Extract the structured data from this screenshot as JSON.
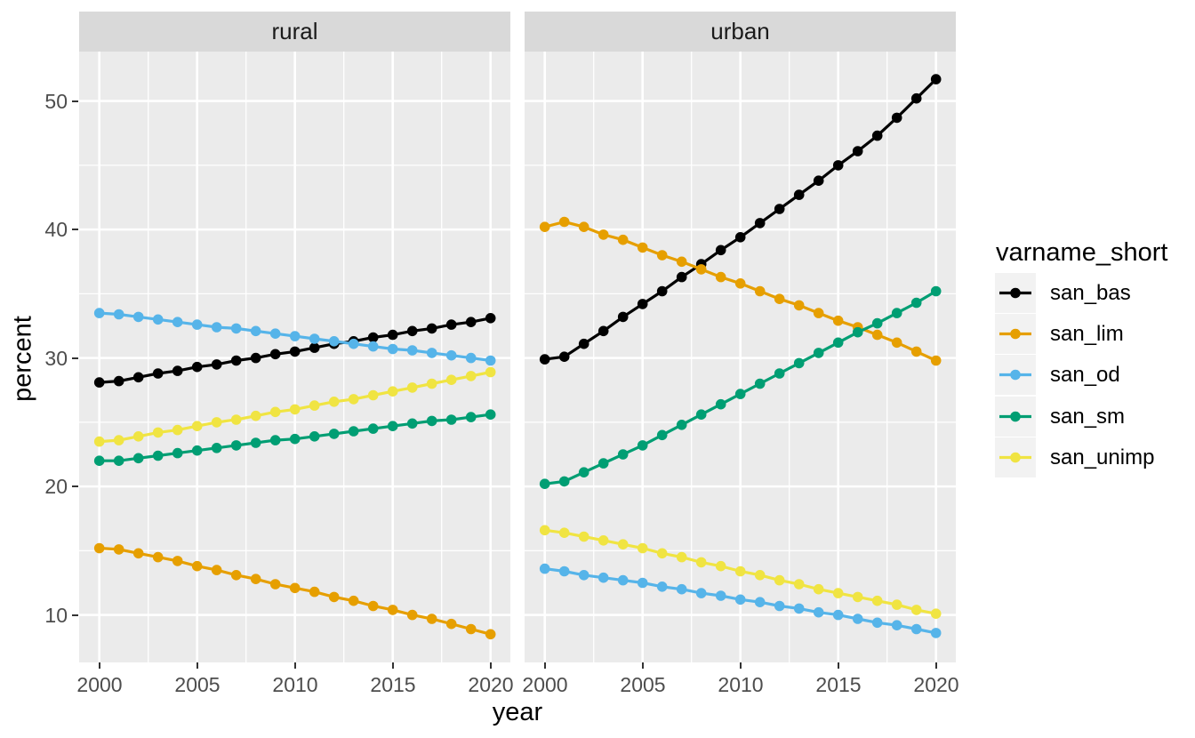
{
  "figure": {
    "background": "#FFFFFF",
    "panel_background": "#EBEBEB",
    "strip_background": "#D9D9D9",
    "grid_color": "#FFFFFF",
    "axis_text_color": "#4D4D4D",
    "tick_mark_color": "#333333",
    "legend_key_background": "#F2F2F2"
  },
  "chart_data": {
    "type": "line",
    "xlabel": "year",
    "ylabel": "percent",
    "legend_title": "varname_short",
    "legend_position": "right",
    "grid": true,
    "facets": [
      "rural",
      "urban"
    ],
    "x": [
      2000,
      2001,
      2002,
      2003,
      2004,
      2005,
      2006,
      2007,
      2008,
      2009,
      2010,
      2011,
      2012,
      2013,
      2014,
      2015,
      2016,
      2017,
      2018,
      2019,
      2020
    ],
    "x_ticks": [
      2000,
      2005,
      2010,
      2015,
      2020
    ],
    "x_minor_ticks": [
      2002.5,
      2007.5,
      2012.5,
      2017.5
    ],
    "y_ticks": [
      10,
      20,
      30,
      40,
      50
    ],
    "y_minor_ticks": [
      15,
      25,
      35,
      45
    ],
    "xlim": [
      1999,
      2021
    ],
    "ylim": [
      6.4,
      53.9
    ],
    "series": [
      {
        "name": "san_bas",
        "color": "#000000",
        "values": {
          "rural": [
            28.1,
            28.2,
            28.5,
            28.8,
            29.0,
            29.3,
            29.5,
            29.8,
            30.0,
            30.3,
            30.5,
            30.8,
            31.1,
            31.3,
            31.6,
            31.8,
            32.1,
            32.3,
            32.6,
            32.8,
            33.1
          ],
          "urban": [
            29.9,
            30.1,
            31.1,
            32.1,
            33.2,
            34.2,
            35.2,
            36.3,
            37.3,
            38.4,
            39.4,
            40.5,
            41.6,
            42.7,
            43.8,
            45.0,
            46.1,
            47.3,
            48.7,
            50.2,
            51.7
          ]
        }
      },
      {
        "name": "san_lim",
        "color": "#E69F00",
        "values": {
          "rural": [
            15.2,
            15.1,
            14.8,
            14.5,
            14.2,
            13.8,
            13.5,
            13.1,
            12.8,
            12.4,
            12.1,
            11.8,
            11.4,
            11.1,
            10.7,
            10.4,
            10.0,
            9.7,
            9.3,
            8.9,
            8.5
          ],
          "urban": [
            40.2,
            40.6,
            40.2,
            39.6,
            39.2,
            38.6,
            38.0,
            37.5,
            36.9,
            36.3,
            35.8,
            35.2,
            34.6,
            34.1,
            33.5,
            32.9,
            32.4,
            31.8,
            31.2,
            30.5,
            29.8
          ]
        }
      },
      {
        "name": "san_od",
        "color": "#56B4E9",
        "values": {
          "rural": [
            33.5,
            33.4,
            33.2,
            33.0,
            32.8,
            32.6,
            32.4,
            32.3,
            32.1,
            31.9,
            31.7,
            31.5,
            31.3,
            31.1,
            30.9,
            30.7,
            30.6,
            30.4,
            30.2,
            30.0,
            29.8
          ],
          "urban": [
            13.6,
            13.4,
            13.1,
            12.9,
            12.7,
            12.5,
            12.2,
            12.0,
            11.7,
            11.5,
            11.2,
            11.0,
            10.7,
            10.5,
            10.2,
            10.0,
            9.7,
            9.4,
            9.2,
            8.9,
            8.6
          ]
        }
      },
      {
        "name": "san_sm",
        "color": "#009E73",
        "values": {
          "rural": [
            22.0,
            22.0,
            22.2,
            22.4,
            22.6,
            22.8,
            23.0,
            23.2,
            23.4,
            23.6,
            23.7,
            23.9,
            24.1,
            24.3,
            24.5,
            24.7,
            24.9,
            25.1,
            25.2,
            25.4,
            25.6
          ],
          "urban": [
            20.2,
            20.4,
            21.1,
            21.8,
            22.5,
            23.2,
            24.0,
            24.8,
            25.6,
            26.4,
            27.2,
            28.0,
            28.8,
            29.6,
            30.4,
            31.2,
            32.0,
            32.7,
            33.5,
            34.3,
            35.2
          ]
        }
      },
      {
        "name": "san_unimp",
        "color": "#F0E442",
        "values": {
          "rural": [
            23.5,
            23.6,
            23.9,
            24.2,
            24.4,
            24.7,
            25.0,
            25.2,
            25.5,
            25.8,
            26.0,
            26.3,
            26.6,
            26.8,
            27.1,
            27.4,
            27.7,
            28.0,
            28.3,
            28.6,
            28.9
          ],
          "urban": [
            16.6,
            16.4,
            16.1,
            15.8,
            15.5,
            15.2,
            14.8,
            14.5,
            14.1,
            13.8,
            13.4,
            13.1,
            12.7,
            12.4,
            12.0,
            11.7,
            11.4,
            11.1,
            10.8,
            10.4,
            10.1
          ]
        }
      }
    ]
  }
}
